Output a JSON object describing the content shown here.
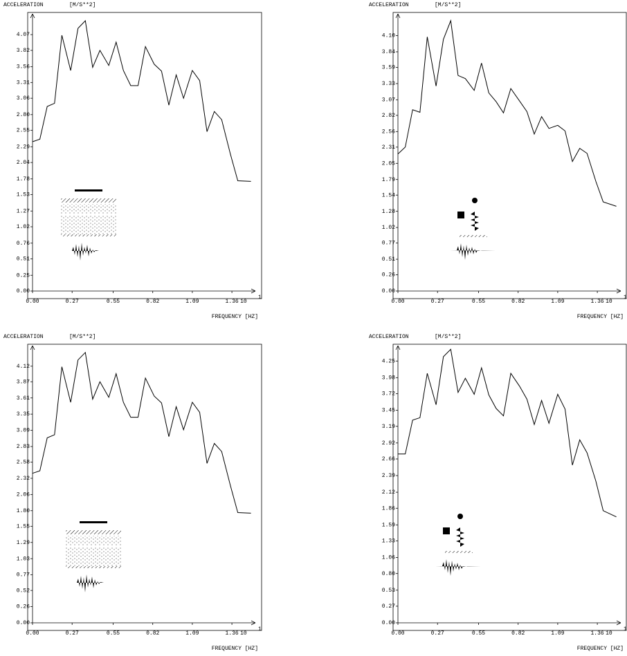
{
  "chart_data": [
    {
      "type": "line",
      "y_label": "ACCELERATION",
      "y_unit": "[M/S**2]",
      "x_label": "FREQUENCY [HZ]",
      "x_multiplier": "10",
      "x_exponent": "1",
      "color": "#000000",
      "xlim": [
        0,
        1.52
      ],
      "ylim": [
        0,
        4.4
      ],
      "xticks": [
        {
          "value": 0,
          "label": "0.00"
        },
        0.27,
        0.55,
        0.82,
        1.09,
        1.36
      ],
      "yticks": [
        {
          "value": 0,
          "label": "0.00"
        },
        0.25,
        0.51,
        0.76,
        1.02,
        1.27,
        1.53,
        1.78,
        2.04,
        2.29,
        2.55,
        {
          "value": 2.8,
          "label": "2.80"
        },
        3.06,
        3.31,
        3.56,
        3.82,
        4.07
      ],
      "x": [
        0,
        0.05,
        0.1,
        0.15,
        0.2,
        0.26,
        0.31,
        0.36,
        0.41,
        0.46,
        0.52,
        0.57,
        0.62,
        0.67,
        0.72,
        0.77,
        0.83,
        0.88,
        0.93,
        0.98,
        1.03,
        1.09,
        1.14,
        1.19,
        1.24,
        1.29,
        1.35,
        1.4,
        1.49
      ],
      "values": [
        2.37,
        2.41,
        2.93,
        2.98,
        4.06,
        3.5,
        4.17,
        4.29,
        3.55,
        3.82,
        3.58,
        3.95,
        3.5,
        3.26,
        3.26,
        3.88,
        3.6,
        3.49,
        2.95,
        3.43,
        3.06,
        3.5,
        3.34,
        2.53,
        2.85,
        2.72,
        2.17,
        1.75,
        1.74
      ]
    },
    {
      "type": "line",
      "y_label": "ACCELERATION",
      "y_unit": "[M/S**2]",
      "x_label": "FREQUENCY [HZ]",
      "x_multiplier": "10",
      "x_exponent": "1",
      "color": "#000000",
      "xlim": [
        0,
        1.52
      ],
      "ylim": [
        0,
        4.45
      ],
      "xticks": [
        {
          "value": 0,
          "label": "0.00"
        },
        0.27,
        0.55,
        0.82,
        1.09,
        1.36
      ],
      "yticks": [
        {
          "value": 0,
          "label": "0.00"
        },
        0.26,
        0.51,
        0.77,
        1.02,
        1.28,
        1.54,
        1.79,
        2.05,
        2.31,
        2.56,
        2.82,
        3.07,
        3.33,
        3.59,
        3.84,
        {
          "value": 4.1,
          "label": "4.10"
        }
      ],
      "x": [
        0,
        0.05,
        0.1,
        0.15,
        0.2,
        0.26,
        0.31,
        0.36,
        0.41,
        0.46,
        0.52,
        0.57,
        0.62,
        0.67,
        0.72,
        0.77,
        0.83,
        0.88,
        0.93,
        0.98,
        1.03,
        1.09,
        1.14,
        1.19,
        1.24,
        1.29,
        1.35,
        1.4,
        1.49
      ],
      "values": [
        2.2,
        2.31,
        2.91,
        2.87,
        4.08,
        3.29,
        4.04,
        4.34,
        3.46,
        3.41,
        3.22,
        3.66,
        3.18,
        3.04,
        2.86,
        3.25,
        3.05,
        2.88,
        2.52,
        2.8,
        2.61,
        2.66,
        2.57,
        2.08,
        2.29,
        2.21,
        1.76,
        1.43,
        1.36
      ]
    },
    {
      "type": "line",
      "y_label": "ACCELERATION",
      "y_unit": "[M/S**2]",
      "x_label": "FREQUENCY [HZ]",
      "x_multiplier": "10",
      "x_exponent": "1",
      "color": "#000000",
      "xlim": [
        0,
        1.52
      ],
      "ylim": [
        0,
        4.45
      ],
      "xticks": [
        {
          "value": 0,
          "label": "0.00"
        },
        0.27,
        0.55,
        0.82,
        1.09,
        1.36
      ],
      "yticks": [
        {
          "value": 0,
          "label": "0.00"
        },
        0.26,
        0.52,
        0.77,
        1.03,
        1.29,
        1.55,
        {
          "value": 1.8,
          "label": "1.80"
        },
        2.06,
        2.32,
        2.58,
        2.83,
        3.09,
        3.35,
        3.61,
        3.87,
        4.12
      ],
      "x": [
        0,
        0.05,
        0.1,
        0.15,
        0.2,
        0.26,
        0.31,
        0.36,
        0.41,
        0.46,
        0.52,
        0.57,
        0.62,
        0.67,
        0.72,
        0.77,
        0.83,
        0.88,
        0.93,
        0.98,
        1.03,
        1.09,
        1.14,
        1.19,
        1.24,
        1.29,
        1.35,
        1.4,
        1.49
      ],
      "values": [
        2.4,
        2.44,
        2.97,
        3.02,
        4.11,
        3.54,
        4.22,
        4.34,
        3.59,
        3.87,
        3.62,
        4.0,
        3.54,
        3.3,
        3.3,
        3.93,
        3.64,
        3.53,
        2.99,
        3.47,
        3.1,
        3.54,
        3.38,
        2.56,
        2.88,
        2.75,
        2.2,
        1.77,
        1.76
      ]
    },
    {
      "type": "line",
      "y_label": "ACCELERATION",
      "y_unit": "[M/S**2]",
      "x_label": "FREQUENCY [HZ]",
      "x_multiplier": "10",
      "x_exponent": "1",
      "color": "#000000",
      "xlim": [
        0,
        1.52
      ],
      "ylim": [
        0,
        4.5
      ],
      "xticks": [
        {
          "value": 0,
          "label": "0.00"
        },
        0.27,
        0.55,
        0.82,
        1.09,
        1.36
      ],
      "yticks": [
        {
          "value": 0,
          "label": "0.00"
        },
        0.27,
        0.53,
        {
          "value": 0.8,
          "label": "0.80"
        },
        1.06,
        1.33,
        1.59,
        1.86,
        2.12,
        2.39,
        2.66,
        2.92,
        3.19,
        3.45,
        3.72,
        3.98,
        4.25
      ],
      "x": [
        0,
        0.05,
        0.1,
        0.15,
        0.2,
        0.26,
        0.31,
        0.36,
        0.41,
        0.46,
        0.52,
        0.57,
        0.62,
        0.67,
        0.72,
        0.77,
        0.83,
        0.88,
        0.93,
        0.98,
        1.03,
        1.09,
        1.14,
        1.19,
        1.24,
        1.29,
        1.35,
        1.4,
        1.49
      ],
      "values": [
        2.74,
        2.74,
        3.29,
        3.33,
        4.05,
        3.54,
        4.32,
        4.44,
        3.74,
        3.97,
        3.71,
        4.14,
        3.7,
        3.48,
        3.36,
        4.05,
        3.84,
        3.63,
        3.22,
        3.61,
        3.24,
        3.71,
        3.47,
        2.56,
        2.97,
        2.76,
        2.3,
        1.82,
        1.72
      ]
    }
  ]
}
